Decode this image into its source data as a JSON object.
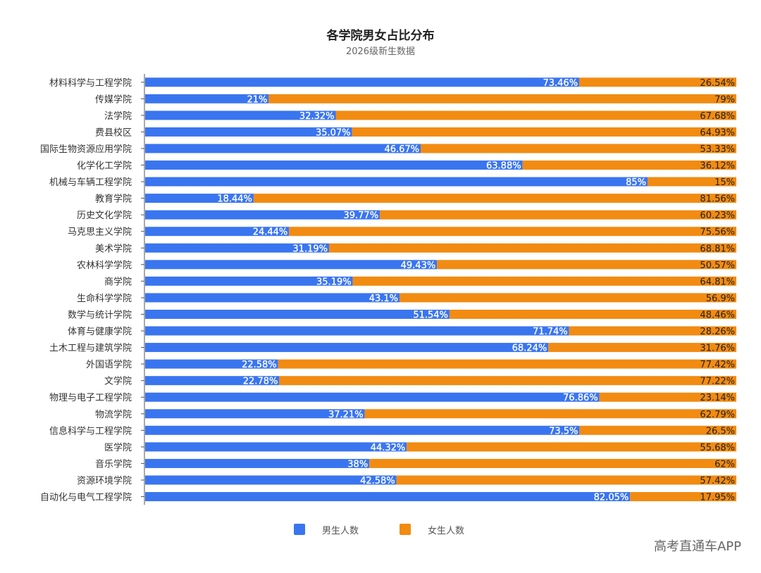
{
  "chart_data": {
    "type": "bar",
    "stacked": true,
    "orientation": "horizontal",
    "title": "各学院男女占比分布",
    "subtitle": "2026级新生数据",
    "categories": [
      "材料科学与工程学院",
      "传媒学院",
      "法学院",
      "费县校区",
      "国际生物资源应用学院",
      "化学化工学院",
      "机械与车辆工程学院",
      "教育学院",
      "历史文化学院",
      "马克思主义学院",
      "美术学院",
      "农林科学学院",
      "商学院",
      "生命科学学院",
      "数学与统计学院",
      "体育与健康学院",
      "土木工程与建筑学院",
      "外国语学院",
      "文学院",
      "物理与电子工程学院",
      "物流学院",
      "信息科学与工程学院",
      "医学院",
      "音乐学院",
      "资源环境学院",
      "自动化与电气工程学院"
    ],
    "series": [
      {
        "name": "男生人数",
        "color": "#3a75f0",
        "values": [
          73.46,
          21,
          32.32,
          35.07,
          46.67,
          63.88,
          85,
          18.44,
          39.77,
          24.44,
          31.19,
          49.43,
          35.19,
          43.1,
          51.54,
          71.74,
          68.24,
          22.58,
          22.78,
          76.86,
          37.21,
          73.5,
          44.32,
          38,
          42.58,
          82.05
        ],
        "labels": [
          "73.46%",
          "21%",
          "32.32%",
          "35.07%",
          "46.67%",
          "63.88%",
          "85%",
          "18.44%",
          "39.77%",
          "24.44%",
          "31.19%",
          "49.43%",
          "35.19%",
          "43.1%",
          "51.54%",
          "71.74%",
          "68.24%",
          "22.58%",
          "22.78%",
          "76.86%",
          "37.21%",
          "73.5%",
          "44.32%",
          "38%",
          "42.58%",
          "82.05%"
        ]
      },
      {
        "name": "女生人数",
        "color": "#f28b12",
        "values": [
          26.54,
          79,
          67.68,
          64.93,
          53.33,
          36.12,
          15,
          81.56,
          60.23,
          75.56,
          68.81,
          50.57,
          64.81,
          56.9,
          48.46,
          28.26,
          31.76,
          77.42,
          77.22,
          23.14,
          62.79,
          26.5,
          55.68,
          62,
          57.42,
          17.95
        ],
        "labels": [
          "26.54%",
          "79%",
          "67.68%",
          "64.93%",
          "53.33%",
          "36.12%",
          "15%",
          "81.56%",
          "60.23%",
          "75.56%",
          "68.81%",
          "50.57%",
          "64.81%",
          "56.9%",
          "48.46%",
          "28.26%",
          "31.76%",
          "77.42%",
          "77.22%",
          "23.14%",
          "62.79%",
          "26.5%",
          "55.68%",
          "62%",
          "57.42%",
          "17.95%"
        ]
      }
    ],
    "xlim": [
      0,
      100
    ],
    "legend_position": "bottom"
  },
  "legend": {
    "male_label": "男生人数",
    "female_label": "女生人数"
  },
  "watermark": "高考直通车APP"
}
